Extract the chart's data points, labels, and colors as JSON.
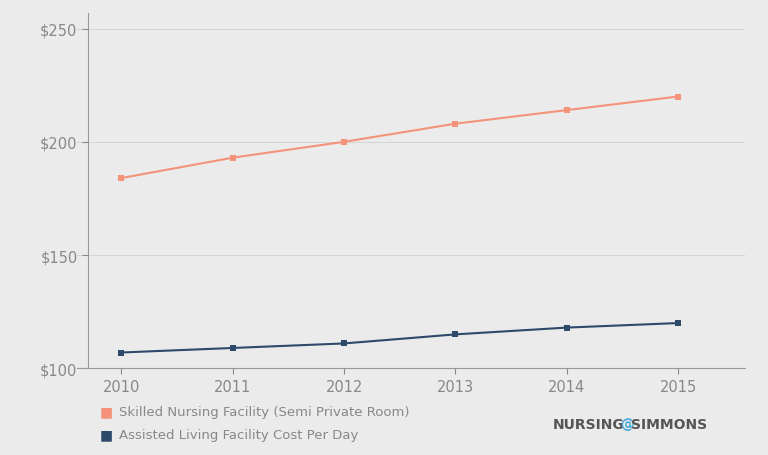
{
  "years": [
    2010,
    2011,
    2012,
    2013,
    2014,
    2015
  ],
  "skilled_nursing": [
    184,
    193,
    200,
    208,
    214,
    220
  ],
  "assisted_living": [
    107,
    109,
    111,
    115,
    118,
    120
  ],
  "skilled_color": "#F4927A",
  "assisted_color": "#2E4A6B",
  "background_color": "#EBEBEB",
  "plot_background": "#EBEBEB",
  "ylim": [
    100,
    257
  ],
  "yticks": [
    100,
    150,
    200,
    250
  ],
  "legend_skilled": "Skilled Nursing Facility (Semi Private Room)",
  "legend_assisted": "Assisted Living Facility Cost Per Day",
  "tick_color": "#888888",
  "axis_color": "#999999",
  "grid_color": "#d0d0d0",
  "marker": "s",
  "marker_size": 4,
  "line_width": 1.5
}
